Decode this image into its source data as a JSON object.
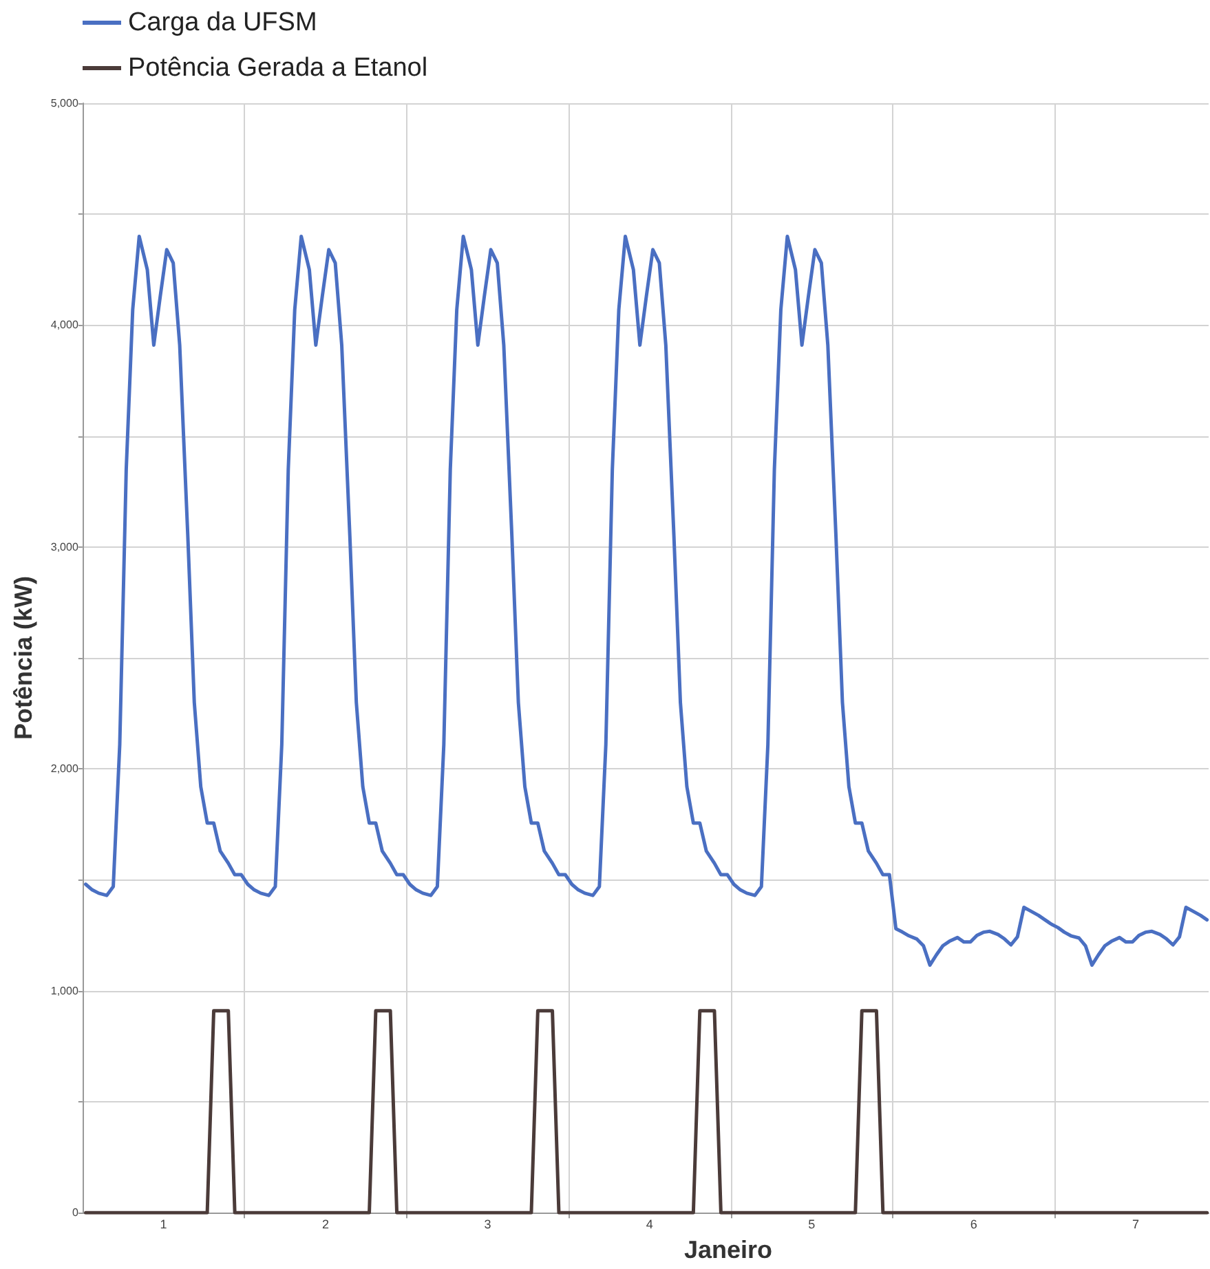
{
  "chart_data": {
    "type": "line",
    "xlabel": "Janeiro",
    "ylabel": "Potência (kW)",
    "x": [
      0.52,
      0.56,
      0.6,
      0.65,
      0.69,
      0.73,
      0.77,
      0.81,
      0.85,
      0.9,
      0.94,
      0.98,
      1.02,
      1.06,
      1.1,
      1.15,
      1.19,
      1.23,
      1.27,
      1.31,
      1.35,
      1.4,
      1.44,
      1.48,
      1.52,
      1.56,
      1.6,
      1.65,
      1.69,
      1.73,
      1.77,
      1.81,
      1.85,
      1.9,
      1.94,
      1.98,
      2.02,
      2.06,
      2.1,
      2.15,
      2.19,
      2.23,
      2.27,
      2.31,
      2.35,
      2.4,
      2.44,
      2.48,
      2.52,
      2.56,
      2.6,
      2.65,
      2.69,
      2.73,
      2.77,
      2.81,
      2.85,
      2.9,
      2.94,
      2.98,
      3.02,
      3.06,
      3.1,
      3.15,
      3.19,
      3.23,
      3.27,
      3.31,
      3.35,
      3.4,
      3.44,
      3.48,
      3.52,
      3.56,
      3.6,
      3.65,
      3.69,
      3.73,
      3.77,
      3.81,
      3.85,
      3.9,
      3.94,
      3.98,
      4.02,
      4.06,
      4.1,
      4.15,
      4.19,
      4.23,
      4.27,
      4.31,
      4.35,
      4.4,
      4.44,
      4.48,
      4.52,
      4.56,
      4.6,
      4.65,
      4.69,
      4.73,
      4.77,
      4.81,
      4.85,
      4.9,
      4.94,
      4.98,
      5.02,
      5.06,
      5.1,
      5.15,
      5.19,
      5.23,
      5.27,
      5.31,
      5.35,
      5.4,
      5.44,
      5.48,
      5.52,
      5.56,
      5.6,
      5.65,
      5.69,
      5.73,
      5.77,
      5.81,
      5.85,
      5.9,
      5.94,
      5.98,
      6.02,
      6.06,
      6.1,
      6.15,
      6.19,
      6.23,
      6.27,
      6.31,
      6.35,
      6.4,
      6.44,
      6.48,
      6.52,
      6.56,
      6.6,
      6.65,
      6.69,
      6.73,
      6.77,
      6.81,
      6.85,
      6.9,
      6.94,
      6.98,
      7.02,
      7.06,
      7.1,
      7.15,
      7.19,
      7.23,
      7.27,
      7.31,
      7.35,
      7.4,
      7.44
    ],
    "series": [
      {
        "name": "Carga da UFSM",
        "color": "#4a6fc2",
        "values": [
          1480,
          1455,
          1440,
          1430,
          1470,
          2110,
          3350,
          4070,
          4400,
          4250,
          3910,
          4130,
          4340,
          4280,
          3910,
          3050,
          2300,
          1920,
          1756,
          1756,
          1630,
          1575,
          1523,
          1523,
          1480,
          1455,
          1440,
          1430,
          1470,
          2110,
          3350,
          4070,
          4400,
          4250,
          3910,
          4130,
          4340,
          4280,
          3910,
          3050,
          2300,
          1920,
          1756,
          1756,
          1630,
          1575,
          1523,
          1523,
          1480,
          1455,
          1440,
          1430,
          1470,
          2110,
          3350,
          4070,
          4400,
          4250,
          3910,
          4130,
          4340,
          4280,
          3910,
          3050,
          2300,
          1920,
          1756,
          1756,
          1630,
          1575,
          1523,
          1523,
          1480,
          1455,
          1440,
          1430,
          1470,
          2110,
          3350,
          4070,
          4400,
          4250,
          3910,
          4130,
          4340,
          4280,
          3910,
          3050,
          2300,
          1920,
          1756,
          1756,
          1630,
          1575,
          1523,
          1523,
          1480,
          1455,
          1440,
          1430,
          1470,
          2110,
          3350,
          4070,
          4400,
          4250,
          3910,
          4130,
          4340,
          4280,
          3910,
          3050,
          2300,
          1920,
          1756,
          1756,
          1630,
          1575,
          1523,
          1523,
          1280,
          1265,
          1248,
          1233,
          1203,
          1116,
          1162,
          1203,
          1223,
          1240,
          1220,
          1220,
          1250,
          1264,
          1268,
          1254,
          1234,
          1207,
          1243,
          1376,
          1360,
          1340,
          1320,
          1300,
          1285,
          1264,
          1248,
          1238,
          1203,
          1116,
          1162,
          1203,
          1223,
          1240,
          1220,
          1220,
          1250,
          1264,
          1268,
          1254,
          1234,
          1207,
          1243,
          1376,
          1360,
          1340,
          1320
        ]
      },
      {
        "name": "Potência Gerada a Etanol",
        "color": "#4b3b39",
        "values": [
          0,
          0,
          0,
          0,
          0,
          0,
          0,
          0,
          0,
          0,
          0,
          0,
          0,
          0,
          0,
          0,
          0,
          0,
          0,
          910,
          910,
          910,
          0,
          0,
          0,
          0,
          0,
          0,
          0,
          0,
          0,
          0,
          0,
          0,
          0,
          0,
          0,
          0,
          0,
          0,
          0,
          0,
          0,
          910,
          910,
          910,
          0,
          0,
          0,
          0,
          0,
          0,
          0,
          0,
          0,
          0,
          0,
          0,
          0,
          0,
          0,
          0,
          0,
          0,
          0,
          0,
          0,
          910,
          910,
          910,
          0,
          0,
          0,
          0,
          0,
          0,
          0,
          0,
          0,
          0,
          0,
          0,
          0,
          0,
          0,
          0,
          0,
          0,
          0,
          0,
          0,
          910,
          910,
          910,
          0,
          0,
          0,
          0,
          0,
          0,
          0,
          0,
          0,
          0,
          0,
          0,
          0,
          0,
          0,
          0,
          0,
          0,
          0,
          0,
          0,
          910,
          910,
          910,
          0,
          0,
          0,
          0,
          0,
          0,
          0,
          0,
          0,
          0,
          0,
          0,
          0,
          0,
          0,
          0,
          0,
          0,
          0,
          0,
          0,
          0,
          0,
          0,
          0,
          0,
          0,
          0,
          0,
          0,
          0,
          0,
          0,
          0,
          0,
          0,
          0,
          0,
          0,
          0,
          0,
          0,
          0,
          0,
          0,
          0,
          0,
          0,
          0
        ]
      }
    ],
    "xlim": [
      0.5,
      7.45
    ],
    "xticks": [
      1,
      {
        "value": 1.5,
        "label": null
      },
      2,
      {
        "value": 2.5,
        "label": null
      },
      3,
      {
        "value": 3.5,
        "label": null
      },
      4,
      {
        "value": 4.5,
        "label": null
      },
      5,
      {
        "value": 5.5,
        "label": null
      },
      6,
      {
        "value": 6.5,
        "label": null
      },
      7
    ],
    "ylim": [
      0,
      5000
    ],
    "yticks": [
      0,
      {
        "value": 500,
        "label": null
      },
      {
        "value": 1000,
        "label": "1,000"
      },
      {
        "value": 1500,
        "label": null
      },
      {
        "value": 2000,
        "label": "2,000"
      },
      {
        "value": 2500,
        "label": null
      },
      {
        "value": 3000,
        "label": "3,000"
      },
      {
        "value": 3500,
        "label": null
      },
      {
        "value": 4000,
        "label": "4,000"
      },
      {
        "value": 4500,
        "label": null
      },
      {
        "value": 5000,
        "label": "5,000"
      }
    ],
    "grid": true,
    "legend": "top left",
    "marker": "none",
    "line_style": "solid"
  }
}
